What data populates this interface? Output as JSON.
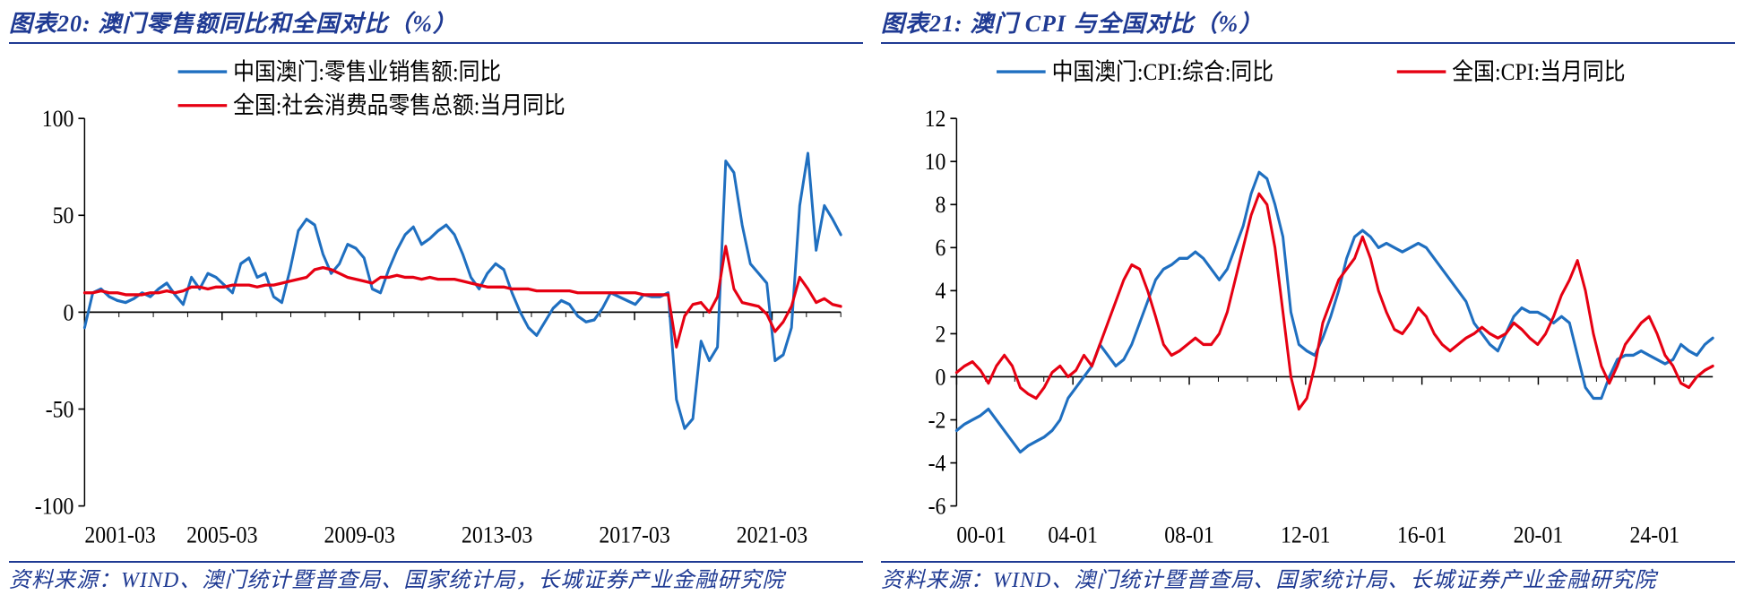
{
  "left": {
    "title_prefix": "图表",
    "title_num": "20",
    "title_colon": ": ",
    "title_text": "澳门零售额同比和全国对比（%）",
    "source": "资料来源：WIND、澳门统计暨普查局、国家统计局，长城证券产业金融研究院",
    "chart": {
      "type": "line",
      "ylim": [
        -100,
        100
      ],
      "ytick_step": 50,
      "yticks": [
        -100,
        -50,
        0,
        50,
        100
      ],
      "xticks": [
        "2001-03",
        "2005-03",
        "2009-03",
        "2013-03",
        "2017-03",
        "2021-03"
      ],
      "x_minor_per_major": 4,
      "background_color": "#ffffff",
      "axis_color": "#000000",
      "tick_color": "#000000",
      "label_fontsize": 24,
      "line_width": 3,
      "series": [
        {
          "name": "中国澳门:零售业销售额:同比",
          "color": "#1f6fc0",
          "data": [
            -8,
            10,
            12,
            8,
            6,
            5,
            7,
            10,
            8,
            12,
            15,
            9,
            4,
            18,
            12,
            20,
            18,
            14,
            10,
            25,
            28,
            18,
            20,
            8,
            5,
            22,
            42,
            48,
            45,
            30,
            20,
            25,
            35,
            33,
            28,
            12,
            10,
            22,
            32,
            40,
            44,
            35,
            38,
            42,
            45,
            40,
            30,
            18,
            12,
            20,
            25,
            22,
            10,
            0,
            -8,
            -12,
            -5,
            2,
            6,
            4,
            -2,
            -5,
            -4,
            2,
            10,
            8,
            6,
            4,
            9,
            8,
            8,
            10,
            -45,
            -60,
            -55,
            -15,
            -25,
            -18,
            78,
            72,
            45,
            25,
            20,
            15,
            -25,
            -22,
            -8,
            55,
            82,
            32,
            55,
            48,
            40
          ]
        },
        {
          "name": "全国:社会消费品零售总额:当月同比",
          "color": "#e60012",
          "data": [
            10,
            10,
            11,
            10,
            10,
            9,
            9,
            9,
            10,
            10,
            11,
            10,
            11,
            13,
            13,
            12,
            13,
            13,
            14,
            14,
            14,
            13,
            14,
            14,
            15,
            16,
            17,
            18,
            22,
            23,
            22,
            20,
            18,
            17,
            16,
            15,
            18,
            18,
            19,
            18,
            18,
            17,
            18,
            17,
            17,
            17,
            16,
            15,
            14,
            13,
            13,
            13,
            12,
            12,
            12,
            11,
            11,
            11,
            11,
            11,
            10,
            10,
            10,
            10,
            10,
            10,
            10,
            10,
            9,
            9,
            9,
            9,
            -18,
            -2,
            4,
            5,
            0,
            8,
            34,
            12,
            5,
            4,
            3,
            -1,
            -10,
            -5,
            3,
            18,
            12,
            5,
            7,
            4,
            3
          ]
        }
      ]
    }
  },
  "right": {
    "title_prefix": "图表",
    "title_num": "21",
    "title_colon": ": ",
    "title_text": "澳门 CPI 与全国对比（%）",
    "source": "资料来源：WIND、澳门统计暨普查局、国家统计局、长城证券产业金融研究院",
    "chart": {
      "type": "line",
      "ylim": [
        -6,
        12
      ],
      "ytick_step": 2,
      "yticks": [
        -6,
        -4,
        -2,
        0,
        2,
        4,
        6,
        8,
        10,
        12
      ],
      "xticks": [
        "00-01",
        "04-01",
        "08-01",
        "12-01",
        "16-01",
        "20-01",
        "24-01"
      ],
      "x_minor_per_major": 4,
      "background_color": "#ffffff",
      "axis_color": "#000000",
      "tick_color": "#000000",
      "label_fontsize": 24,
      "line_width": 3,
      "series": [
        {
          "name": "中国澳门:CPI:综合:同比",
          "color": "#1f6fc0",
          "data": [
            -2.5,
            -2.2,
            -2.0,
            -1.8,
            -1.5,
            -2.0,
            -2.5,
            -3.0,
            -3.5,
            -3.2,
            -3.0,
            -2.8,
            -2.5,
            -2.0,
            -1.0,
            -0.5,
            0.0,
            0.5,
            1.5,
            1.0,
            0.5,
            0.8,
            1.5,
            2.5,
            3.5,
            4.5,
            5.0,
            5.2,
            5.5,
            5.5,
            5.8,
            5.5,
            5.0,
            4.5,
            5.0,
            6.0,
            7.0,
            8.5,
            9.5,
            9.2,
            8.0,
            6.5,
            3.0,
            1.5,
            1.2,
            1.0,
            1.8,
            2.8,
            4.0,
            5.5,
            6.5,
            6.8,
            6.5,
            6.0,
            6.2,
            6.0,
            5.8,
            6.0,
            6.2,
            6.0,
            5.5,
            5.0,
            4.5,
            4.0,
            3.5,
            2.5,
            2.0,
            1.5,
            1.2,
            2.0,
            2.8,
            3.2,
            3.0,
            3.0,
            2.8,
            2.5,
            2.8,
            2.5,
            1.0,
            -0.5,
            -1.0,
            -1.0,
            0.0,
            0.8,
            1.0,
            1.0,
            1.2,
            1.0,
            0.8,
            0.6,
            0.8,
            1.5,
            1.2,
            1.0,
            1.5,
            1.8
          ]
        },
        {
          "name": "全国:CPI:当月同比",
          "color": "#e60012",
          "data": [
            0.2,
            0.5,
            0.7,
            0.3,
            -0.3,
            0.5,
            1.0,
            0.5,
            -0.5,
            -0.8,
            -1.0,
            -0.5,
            0.2,
            0.5,
            0.0,
            0.3,
            1.0,
            0.5,
            1.5,
            2.5,
            3.5,
            4.5,
            5.2,
            5.0,
            4.0,
            2.8,
            1.5,
            1.0,
            1.2,
            1.5,
            1.8,
            1.5,
            1.5,
            2.0,
            3.0,
            4.5,
            6.0,
            7.5,
            8.5,
            8.0,
            6.0,
            3.0,
            0.0,
            -1.5,
            -1.0,
            0.5,
            2.5,
            3.5,
            4.5,
            5.0,
            5.5,
            6.5,
            5.5,
            4.0,
            3.0,
            2.2,
            2.0,
            2.5,
            3.2,
            2.8,
            2.0,
            1.5,
            1.2,
            1.5,
            1.8,
            2.0,
            2.3,
            2.0,
            1.8,
            2.0,
            2.5,
            2.2,
            1.8,
            1.5,
            2.0,
            2.8,
            3.8,
            4.5,
            5.4,
            4.0,
            2.0,
            0.5,
            -0.3,
            0.5,
            1.5,
            2.0,
            2.5,
            2.8,
            2.0,
            1.0,
            0.5,
            -0.3,
            -0.5,
            0.0,
            0.3,
            0.5
          ]
        }
      ]
    }
  }
}
